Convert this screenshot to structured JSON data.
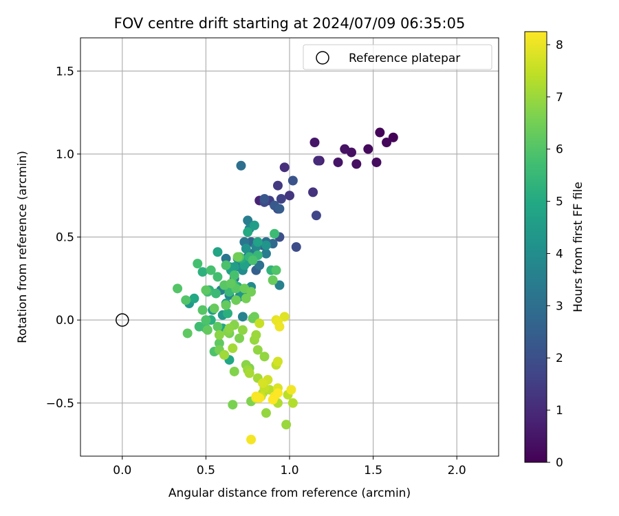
{
  "chart_data": {
    "type": "scatter",
    "title": "FOV centre drift starting at 2024/07/09 06:35:05",
    "xlabel": "Angular distance from reference (arcmin)",
    "ylabel": "Rotation from reference (arcmin)",
    "xlim": [
      -0.25,
      2.25
    ],
    "ylim": [
      -0.82,
      1.7
    ],
    "xticks": [
      0.0,
      0.5,
      1.0,
      1.5,
      2.0
    ],
    "xtick_labels": [
      "0.0",
      "0.5",
      "1.0",
      "1.5",
      "2.0"
    ],
    "yticks": [
      -0.5,
      0.0,
      0.5,
      1.0,
      1.5
    ],
    "ytick_labels": [
      "−0.5",
      "0.0",
      "0.5",
      "1.0",
      "1.5"
    ],
    "grid": true,
    "legend": {
      "position": "top-right",
      "entries": [
        {
          "label": "Reference platepar",
          "marker": "open-circle"
        }
      ]
    },
    "reference_point": {
      "x": 0.0,
      "y": 0.0
    },
    "colorbar": {
      "label": "Hours from first FF file",
      "range": [
        0,
        8.25
      ],
      "ticks": [
        0,
        1,
        2,
        3,
        4,
        5,
        6,
        7,
        8
      ],
      "tick_labels": [
        "0",
        "1",
        "2",
        "3",
        "4",
        "5",
        "6",
        "7",
        "8"
      ],
      "colormap": "viridis"
    },
    "series": [
      {
        "color_value_unit": "hours",
        "points": [
          [
            1.62,
            1.1,
            0.05
          ],
          [
            1.54,
            1.13,
            0.1
          ],
          [
            1.58,
            1.07,
            0.15
          ],
          [
            1.47,
            1.03,
            0.2
          ],
          [
            1.52,
            0.95,
            0.25
          ],
          [
            1.4,
            0.94,
            0.3
          ],
          [
            1.37,
            1.01,
            0.35
          ],
          [
            1.33,
            1.03,
            0.4
          ],
          [
            1.29,
            0.95,
            0.45
          ],
          [
            1.15,
            1.07,
            0.5
          ],
          [
            1.18,
            0.96,
            0.7
          ],
          [
            0.82,
            0.72,
            0.8
          ],
          [
            1.17,
            0.96,
            1.0
          ],
          [
            0.97,
            0.92,
            1.1
          ],
          [
            1.14,
            0.77,
            1.2
          ],
          [
            1.0,
            0.75,
            1.3
          ],
          [
            0.93,
            0.81,
            1.4
          ],
          [
            0.88,
            0.72,
            1.5
          ],
          [
            0.95,
            0.73,
            1.6
          ],
          [
            1.16,
            0.63,
            1.7
          ],
          [
            0.93,
            0.67,
            1.75
          ],
          [
            0.85,
            0.71,
            1.8
          ],
          [
            1.04,
            0.44,
            1.9
          ],
          [
            0.94,
            0.5,
            2.0
          ],
          [
            1.02,
            0.84,
            2.1
          ],
          [
            0.85,
            0.73,
            2.2
          ],
          [
            0.91,
            0.69,
            2.3
          ],
          [
            0.94,
            0.67,
            2.4
          ],
          [
            0.8,
            0.3,
            2.5
          ],
          [
            0.84,
            0.45,
            2.6
          ],
          [
            0.77,
            0.47,
            2.7
          ],
          [
            0.9,
            0.46,
            2.8
          ],
          [
            0.8,
            0.45,
            2.9
          ],
          [
            0.71,
            0.93,
            3.0
          ],
          [
            0.86,
            0.47,
            3.05
          ],
          [
            0.82,
            0.33,
            3.1
          ],
          [
            0.75,
            0.38,
            3.15
          ],
          [
            0.62,
            0.37,
            3.2
          ],
          [
            0.73,
            0.47,
            3.25
          ],
          [
            0.78,
            0.4,
            3.3
          ],
          [
            0.7,
            0.32,
            3.35
          ],
          [
            0.86,
            0.4,
            3.4
          ],
          [
            0.75,
            0.6,
            3.45
          ],
          [
            0.67,
            0.25,
            3.5
          ],
          [
            0.59,
            0.18,
            3.55
          ],
          [
            0.94,
            0.21,
            3.6
          ],
          [
            0.72,
            0.02,
            3.65
          ],
          [
            0.64,
            0.15,
            3.7
          ],
          [
            0.76,
            0.55,
            3.75
          ],
          [
            0.8,
            0.44,
            3.8
          ],
          [
            0.7,
            0.14,
            3.85
          ],
          [
            0.77,
            0.2,
            3.9
          ],
          [
            0.72,
            0.3,
            3.95
          ],
          [
            0.75,
            0.35,
            4.0
          ],
          [
            0.69,
            0.37,
            4.05
          ],
          [
            0.64,
            0.32,
            4.1
          ],
          [
            0.78,
            0.36,
            4.15
          ],
          [
            0.74,
            0.43,
            4.2
          ],
          [
            0.86,
            0.45,
            4.25
          ],
          [
            0.72,
            0.15,
            4.3
          ],
          [
            0.6,
            0.03,
            4.35
          ],
          [
            0.4,
            0.1,
            4.4
          ],
          [
            0.54,
            0.06,
            4.45
          ],
          [
            0.62,
            0.1,
            4.5
          ],
          [
            0.79,
            0.57,
            4.55
          ],
          [
            0.67,
            0.32,
            4.6
          ],
          [
            0.65,
            0.3,
            4.65
          ],
          [
            0.73,
            0.33,
            4.7
          ],
          [
            0.81,
            0.47,
            4.75
          ],
          [
            0.57,
            0.41,
            4.8
          ],
          [
            0.6,
            -0.05,
            4.85
          ],
          [
            0.64,
            -0.24,
            4.9
          ],
          [
            0.43,
            0.13,
            4.95
          ],
          [
            0.75,
            0.53,
            5.0
          ],
          [
            0.71,
            0.37,
            5.05
          ],
          [
            0.69,
            0.2,
            5.1
          ],
          [
            0.53,
            0.0,
            5.15
          ],
          [
            0.63,
            0.04,
            5.2
          ],
          [
            0.48,
            0.29,
            5.25
          ],
          [
            0.52,
            0.18,
            5.3
          ],
          [
            0.89,
            0.3,
            5.35
          ],
          [
            0.76,
            0.38,
            5.4
          ],
          [
            0.81,
            0.39,
            5.45
          ],
          [
            0.64,
            0.17,
            5.5
          ],
          [
            0.56,
            0.16,
            5.55
          ],
          [
            0.91,
            0.52,
            5.6
          ],
          [
            0.62,
            0.09,
            5.62
          ],
          [
            0.51,
            0.17,
            5.65
          ],
          [
            0.46,
            -0.04,
            5.68
          ],
          [
            0.5,
            -0.05,
            5.7
          ],
          [
            0.66,
            0.22,
            5.72
          ],
          [
            0.57,
            0.26,
            5.75
          ],
          [
            0.45,
            0.34,
            5.78
          ],
          [
            0.53,
            0.3,
            5.8
          ],
          [
            0.67,
            0.27,
            5.82
          ],
          [
            0.78,
            0.36,
            5.85
          ],
          [
            0.62,
            0.33,
            5.88
          ],
          [
            0.5,
            0.0,
            5.9
          ],
          [
            0.55,
            -0.19,
            5.92
          ],
          [
            0.7,
            0.38,
            5.95
          ],
          [
            0.92,
            0.3,
            5.98
          ],
          [
            0.38,
            0.12,
            6.0
          ],
          [
            0.33,
            0.19,
            6.02
          ],
          [
            0.48,
            0.06,
            6.05
          ],
          [
            0.61,
            0.21,
            6.08
          ],
          [
            0.68,
            0.19,
            6.1
          ],
          [
            0.57,
            -0.04,
            6.12
          ],
          [
            0.5,
            0.18,
            6.15
          ],
          [
            0.39,
            -0.08,
            6.18
          ],
          [
            0.58,
            -0.14,
            6.2
          ],
          [
            0.65,
            0.22,
            6.22
          ],
          [
            0.51,
            -0.06,
            6.25
          ],
          [
            0.62,
            0.09,
            6.28
          ],
          [
            0.55,
            0.07,
            6.3
          ],
          [
            0.9,
            0.24,
            6.32
          ],
          [
            0.78,
            0.01,
            6.35
          ],
          [
            0.73,
            0.19,
            6.38
          ],
          [
            0.68,
            0.12,
            6.4
          ],
          [
            0.79,
            0.02,
            6.42
          ],
          [
            0.69,
            0.38,
            6.45
          ],
          [
            0.77,
            0.17,
            6.48
          ],
          [
            0.74,
            0.13,
            6.5
          ],
          [
            0.58,
            -0.18,
            6.52
          ],
          [
            0.64,
            -0.08,
            6.55
          ],
          [
            0.66,
            -0.51,
            6.58
          ],
          [
            0.61,
            -0.21,
            6.6
          ],
          [
            0.7,
            -0.11,
            6.62
          ],
          [
            0.77,
            -0.49,
            6.65
          ],
          [
            0.76,
            -0.29,
            6.68
          ],
          [
            0.67,
            -0.31,
            6.7
          ],
          [
            0.63,
            -0.07,
            6.72
          ],
          [
            0.67,
            -0.03,
            6.75
          ],
          [
            0.74,
            -0.27,
            6.78
          ],
          [
            0.58,
            -0.09,
            6.8
          ],
          [
            0.64,
            -0.05,
            6.82
          ],
          [
            0.72,
            -0.06,
            6.85
          ],
          [
            0.81,
            -0.18,
            6.88
          ],
          [
            0.85,
            -0.22,
            6.9
          ],
          [
            0.86,
            -0.56,
            6.92
          ],
          [
            0.79,
            -0.12,
            6.95
          ],
          [
            0.98,
            -0.63,
            6.98
          ],
          [
            0.75,
            -0.3,
            7.0
          ],
          [
            0.8,
            -0.09,
            7.02
          ],
          [
            0.61,
            -0.21,
            7.05
          ],
          [
            0.81,
            -0.35,
            7.1
          ],
          [
            0.66,
            -0.17,
            7.12
          ],
          [
            0.76,
            -0.32,
            7.15
          ],
          [
            0.84,
            -0.44,
            7.2
          ],
          [
            0.93,
            -0.5,
            7.25
          ],
          [
            1.02,
            -0.5,
            7.3
          ],
          [
            0.88,
            -0.42,
            7.35
          ],
          [
            0.99,
            -0.45,
            7.4
          ],
          [
            0.92,
            -0.27,
            7.45
          ],
          [
            0.85,
            -0.41,
            7.5
          ],
          [
            0.82,
            -0.02,
            7.55
          ],
          [
            0.83,
            -0.46,
            7.6
          ],
          [
            0.87,
            -0.36,
            7.65
          ],
          [
            0.93,
            -0.25,
            7.7
          ],
          [
            0.84,
            -0.38,
            7.75
          ],
          [
            0.93,
            -0.41,
            7.8
          ],
          [
            0.97,
            0.02,
            7.85
          ],
          [
            0.8,
            -0.47,
            7.9
          ],
          [
            0.92,
            0.0,
            7.95
          ],
          [
            0.93,
            -0.01,
            8.0
          ],
          [
            0.94,
            -0.04,
            8.05
          ],
          [
            1.01,
            -0.42,
            8.1
          ],
          [
            0.91,
            -0.46,
            8.12
          ],
          [
            0.77,
            -0.72,
            8.15
          ],
          [
            0.82,
            -0.47,
            8.18
          ],
          [
            0.8,
            -0.46,
            8.2
          ],
          [
            0.93,
            -0.44,
            8.22
          ],
          [
            0.9,
            -0.48,
            8.25
          ]
        ]
      }
    ]
  }
}
